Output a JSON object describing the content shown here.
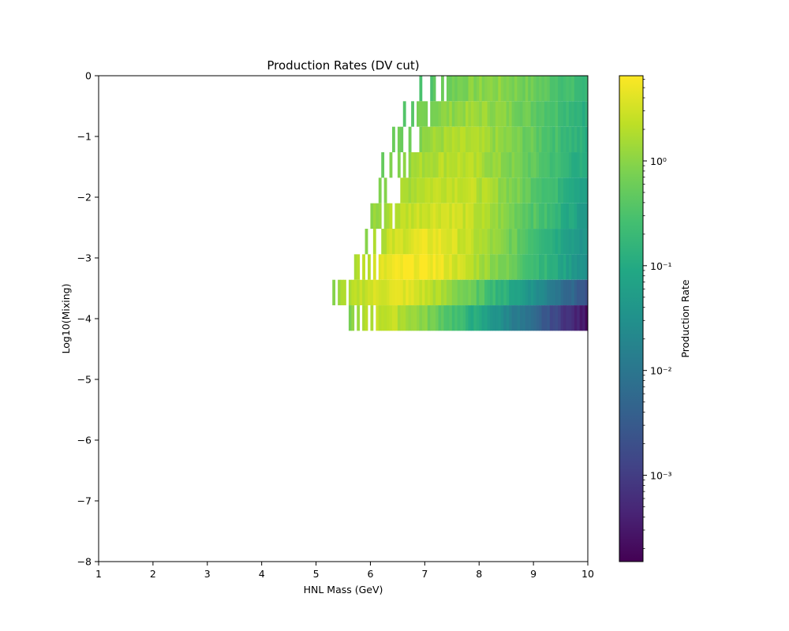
{
  "chart_data": {
    "type": "heatmap",
    "title": "Production Rates (DV cut)",
    "xlabel": "HNL Mass (GeV)",
    "ylabel": "Log10(Mixing)",
    "xlim": [
      1,
      10
    ],
    "ylim": [
      -8,
      0
    ],
    "xticks": [
      "1",
      "2",
      "3",
      "4",
      "5",
      "6",
      "7",
      "8",
      "9",
      "10"
    ],
    "yticks": [
      "0",
      "−1",
      "−2",
      "−3",
      "−4",
      "−5",
      "−6",
      "−7",
      "−8"
    ],
    "colorbar": {
      "label": "Production Rate",
      "scale": "log",
      "colormap": "viridis",
      "range": [
        0.00015,
        6.5
      ],
      "tick_labels": [
        {
          "value": 1,
          "label": "10⁰"
        },
        {
          "value": 0.1,
          "label": "10⁻¹"
        },
        {
          "value": 0.01,
          "label": "10⁻²"
        },
        {
          "value": 0.001,
          "label": "10⁻³"
        }
      ]
    },
    "mass_bin_width": 0.05,
    "rows": [
      {
        "log10_mixing": 0.0,
        "min_mass": 6.9,
        "peak_mass": 8.3,
        "peak_rate": 1.0,
        "edge_rate": 0.15
      },
      {
        "log10_mixing": -0.42,
        "min_mass": 6.6,
        "peak_mass": 8.0,
        "peak_rate": 1.3,
        "edge_rate": 0.12
      },
      {
        "log10_mixing": -0.84,
        "min_mass": 6.4,
        "peak_mass": 7.8,
        "peak_rate": 1.7,
        "edge_rate": 0.1
      },
      {
        "log10_mixing": -1.26,
        "min_mass": 6.2,
        "peak_mass": 7.6,
        "peak_rate": 2.2,
        "edge_rate": 0.08
      },
      {
        "log10_mixing": -1.68,
        "min_mass": 6.1,
        "peak_mass": 7.6,
        "peak_rate": 2.8,
        "edge_rate": 0.06
      },
      {
        "log10_mixing": -2.1,
        "min_mass": 6.0,
        "peak_mass": 7.4,
        "peak_rate": 3.5,
        "edge_rate": 0.045
      },
      {
        "log10_mixing": -2.52,
        "min_mass": 5.9,
        "peak_mass": 7.2,
        "peak_rate": 4.5,
        "edge_rate": 0.03
      },
      {
        "log10_mixing": -2.94,
        "min_mass": 5.7,
        "peak_mass": 7.0,
        "peak_rate": 6.0,
        "edge_rate": 0.025
      },
      {
        "log10_mixing": -3.36,
        "min_mass": 5.3,
        "peak_mass": 6.6,
        "peak_rate": 4.0,
        "edge_rate": 0.002
      },
      {
        "log10_mixing": -3.78,
        "min_mass": 5.6,
        "peak_mass": 6.3,
        "peak_rate": 2.5,
        "edge_rate": 0.0002
      }
    ],
    "row_height": 0.42,
    "grid": false,
    "legend": "colorbar-right"
  }
}
